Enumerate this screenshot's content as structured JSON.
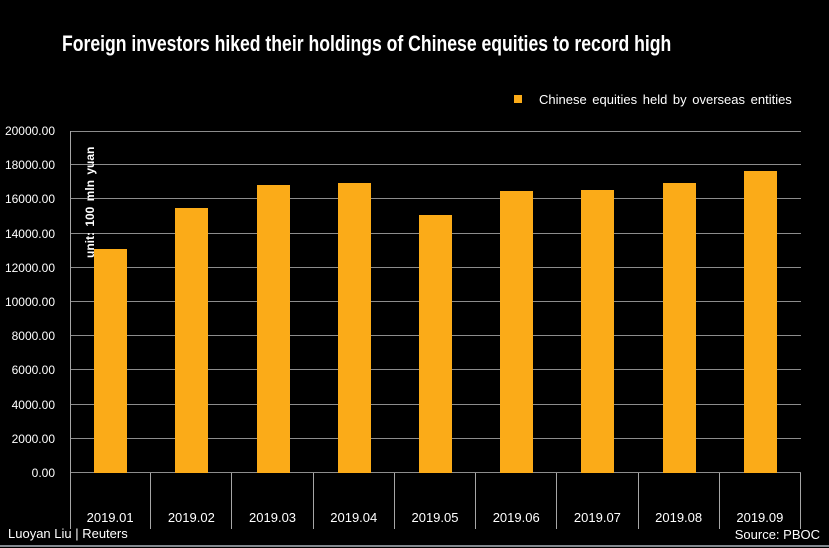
{
  "title": "Foreign investors hiked their holdings of Chinese equities to record high",
  "legend": {
    "label": "Chinese equities held by overseas entities",
    "marker_color": "#FBAB18"
  },
  "unit_label": "unit: 100 mln yuan",
  "footer": {
    "credit": "Luoyan Liu | Reuters",
    "source": "Source: PBOC"
  },
  "colors": {
    "background": "#000000",
    "text": "#FFFFFF",
    "bar": "#FBAB18",
    "gridline": "#8c8c8c",
    "axis": "#a6a6a6",
    "chart_bottom_border": "#83898f"
  },
  "chart_data": {
    "type": "bar",
    "title": "Foreign investors hiked their holdings of Chinese equities to record high",
    "legend_entries": [
      "Chinese equities held by overseas entities"
    ],
    "legend_position": "top-right",
    "categories": [
      "2019.01",
      "2019.02",
      "2019.03",
      "2019.04",
      "2019.05",
      "2019.06",
      "2019.07",
      "2019.08",
      "2019.09"
    ],
    "values": [
      13093.99,
      15519.85,
      16855.43,
      16983.66,
      15061.51,
      16473.27,
      16521.12,
      16935.73,
      17685.54
    ],
    "xlabel": "",
    "ylabel": "unit: 100 mln yuan",
    "ylim": [
      0,
      20000
    ],
    "ytick_step": 2000,
    "ytick_labels": [
      "0.00",
      "2000.00",
      "4000.00",
      "6000.00",
      "8000.00",
      "10000.00",
      "12000.00",
      "14000.00",
      "16000.00",
      "18000.00",
      "20000.00"
    ],
    "grid": true,
    "bar_color": "#FBAB18",
    "source": "Source: PBOC",
    "credit": "Luoyan Liu | Reuters"
  }
}
